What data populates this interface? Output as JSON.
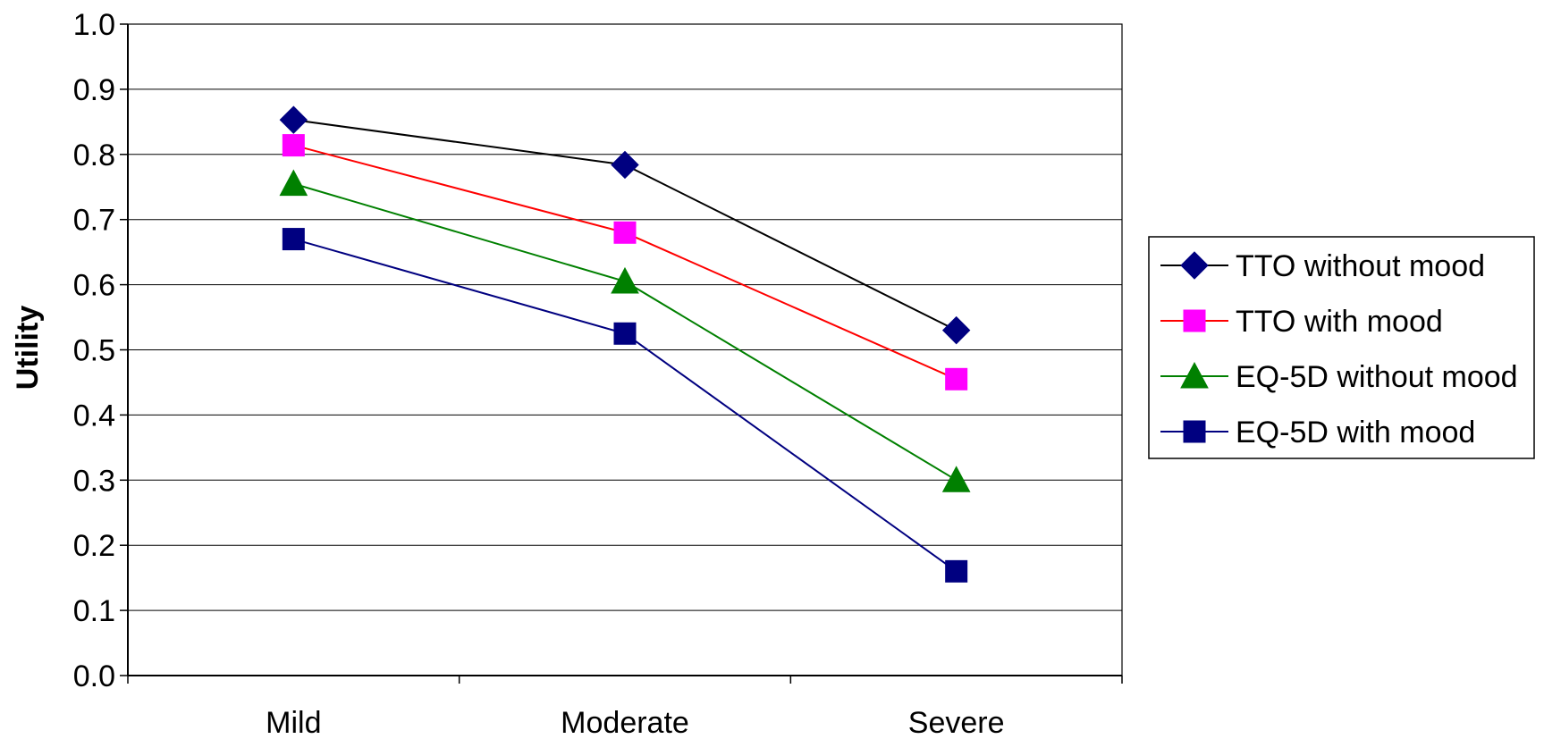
{
  "chart_data": {
    "type": "line",
    "title": "",
    "xlabel": "",
    "ylabel": "Utility",
    "categories": [
      "Mild",
      "Moderate",
      "Severe"
    ],
    "ylim": [
      0,
      1.0
    ],
    "y_ticks": [
      "0.0",
      "0.1",
      "0.2",
      "0.3",
      "0.4",
      "0.5",
      "0.6",
      "0.7",
      "0.8",
      "0.9",
      "1.0"
    ],
    "grid": "horizontal",
    "legend_position": "right",
    "series": [
      {
        "name": "TTO without mood",
        "values": [
          0.853,
          0.784,
          0.53
        ],
        "color": "#000000",
        "marker_color": "#000080",
        "marker": "diamond"
      },
      {
        "name": "TTO with mood",
        "values": [
          0.814,
          0.68,
          0.455
        ],
        "color": "#ff0000",
        "marker_color": "#ff00ff",
        "marker": "square"
      },
      {
        "name": "EQ-5D without mood",
        "values": [
          0.755,
          0.605,
          0.3
        ],
        "color": "#008000",
        "marker_color": "#008000",
        "marker": "triangle"
      },
      {
        "name": "EQ-5D with mood",
        "values": [
          0.67,
          0.525,
          0.16
        ],
        "color": "#000080",
        "marker_color": "#000080",
        "marker": "square"
      }
    ]
  }
}
